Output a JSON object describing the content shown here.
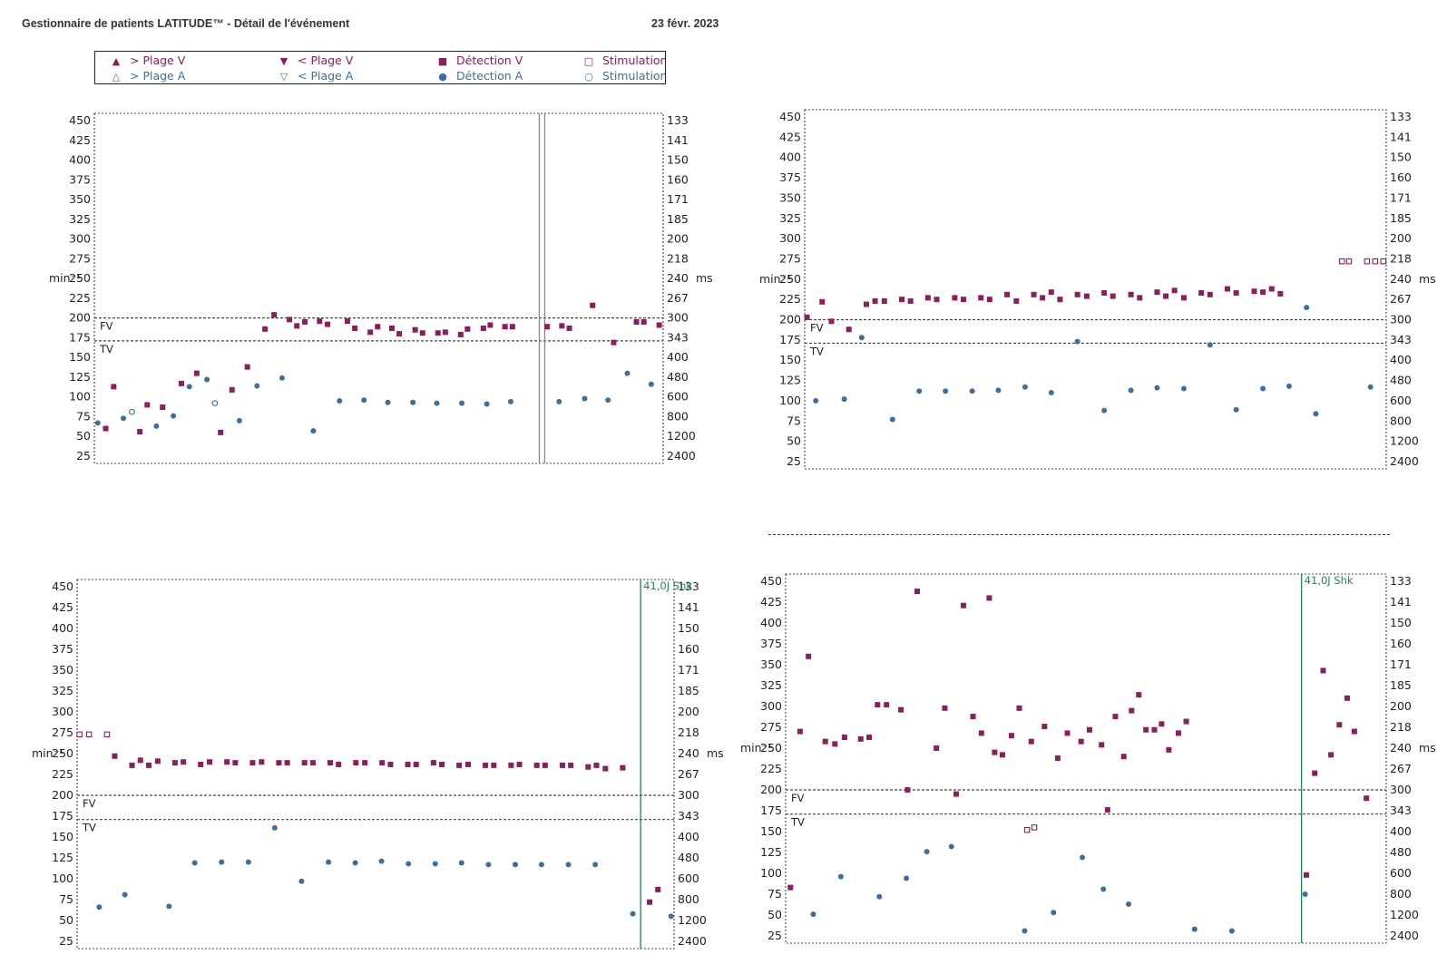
{
  "header": {
    "title": "Gestionnaire de patients LATITUDE™ - Détail de l'événement",
    "date": "23 févr. 2023"
  },
  "colors": {
    "v": "#8b1f5c",
    "a": "#3a6ea5",
    "shock": "#1e8a4a",
    "grid": "#444444"
  },
  "legend": {
    "items": [
      {
        "label": "> Plage V",
        "symbol": "arrow-up-filled-icon",
        "color": "#8b1f5c"
      },
      {
        "label": "< Plage V",
        "symbol": "arrow-down-filled-icon",
        "color": "#8b1f5c"
      },
      {
        "label": "Détection V",
        "symbol": "square-filled-icon",
        "color": "#8b1f5c"
      },
      {
        "label": "Stimulation V",
        "symbol": "square-open-icon",
        "color": "#8b1f5c"
      },
      {
        "label": "> Plage A",
        "symbol": "arrow-up-open-icon",
        "color": "#3a6ea5"
      },
      {
        "label": "< Plage A",
        "symbol": "arrow-down-open-icon",
        "color": "#3a6ea5"
      },
      {
        "label": "Détection A",
        "symbol": "dot-filled-icon",
        "color": "#3a6ea5"
      },
      {
        "label": "Stimulation A",
        "symbol": "dot-open-icon",
        "color": "#3a6ea5"
      }
    ]
  },
  "chart_data": [
    {
      "type": "scatter",
      "ylabel_left": "min⁻¹",
      "ylabel_right": "ms",
      "y_ticks": [
        450,
        425,
        400,
        375,
        350,
        325,
        300,
        275,
        250,
        225,
        200,
        175,
        150,
        125,
        100,
        75,
        50,
        25
      ],
      "ms_ticks": [
        "133",
        "141",
        "150",
        "160",
        "171",
        "185",
        "200",
        "218",
        "240",
        "267",
        "300",
        "343",
        "400",
        "480",
        "600",
        "800",
        "1200",
        "2400"
      ],
      "ylim": [
        25,
        450
      ],
      "xlim": [
        0,
        100
      ],
      "zones": [
        {
          "label": "FV",
          "value": 200
        },
        {
          "label": "TV",
          "value": 171
        }
      ],
      "markers": [
        {
          "kind": "double-line",
          "x": 78.7
        }
      ],
      "v_sense": [
        [
          2,
          60
        ],
        [
          3.4,
          113
        ],
        [
          8,
          56
        ],
        [
          9.3,
          90
        ],
        [
          12,
          87
        ],
        [
          15.3,
          117
        ],
        [
          18,
          130
        ],
        [
          22.2,
          55
        ],
        [
          24.2,
          109
        ],
        [
          26.9,
          138
        ],
        [
          30,
          186
        ],
        [
          31.6,
          204
        ],
        [
          34.3,
          198
        ],
        [
          35.6,
          190
        ],
        [
          37,
          195
        ],
        [
          39.6,
          196
        ],
        [
          41,
          192
        ],
        [
          44.5,
          196
        ],
        [
          45.8,
          187
        ],
        [
          48.5,
          182
        ],
        [
          49.8,
          189
        ],
        [
          52.3,
          187
        ],
        [
          53.6,
          180
        ],
        [
          56.4,
          185
        ],
        [
          57.7,
          181
        ],
        [
          60.4,
          181
        ],
        [
          61.7,
          182
        ],
        [
          64.4,
          179
        ],
        [
          65.6,
          186
        ],
        [
          68.4,
          187
        ],
        [
          69.6,
          191
        ],
        [
          72.2,
          189
        ],
        [
          73.5,
          189
        ],
        [
          79.6,
          189
        ],
        [
          82.2,
          190
        ],
        [
          83.5,
          187
        ],
        [
          87.6,
          216
        ],
        [
          91.3,
          169
        ],
        [
          95.3,
          195
        ],
        [
          96.6,
          195
        ],
        [
          99.3,
          191
        ]
      ],
      "a_sense": [
        [
          0.6,
          67
        ],
        [
          5.1,
          73
        ],
        [
          10.9,
          63
        ],
        [
          13.9,
          76
        ],
        [
          16.7,
          113
        ],
        [
          19.8,
          122
        ],
        [
          25.5,
          70
        ],
        [
          28.6,
          114
        ],
        [
          33,
          124
        ],
        [
          38.5,
          57
        ],
        [
          43.1,
          95
        ],
        [
          47.4,
          96
        ],
        [
          51.6,
          93
        ],
        [
          56,
          93
        ],
        [
          60.2,
          92
        ],
        [
          64.6,
          92
        ],
        [
          69,
          91
        ],
        [
          73.2,
          94
        ],
        [
          81.7,
          94
        ],
        [
          86.2,
          98
        ],
        [
          90.3,
          96
        ],
        [
          93.7,
          130
        ],
        [
          97.9,
          116
        ]
      ],
      "v_pace": [],
      "a_pace": [
        [
          6.6,
          81
        ],
        [
          21.2,
          92
        ]
      ]
    },
    {
      "type": "scatter",
      "ylabel_left": "min⁻¹",
      "ylabel_right": "ms",
      "y_ticks": [
        450,
        425,
        400,
        375,
        350,
        325,
        300,
        275,
        250,
        225,
        200,
        175,
        150,
        125,
        100,
        75,
        50,
        25
      ],
      "ms_ticks": [
        "133",
        "141",
        "150",
        "160",
        "171",
        "185",
        "200",
        "218",
        "240",
        "267",
        "300",
        "343",
        "400",
        "480",
        "600",
        "800",
        "1200",
        "2400"
      ],
      "ylim": [
        25,
        450
      ],
      "xlim": [
        0,
        100
      ],
      "zones": [
        {
          "label": "FV",
          "value": 200
        },
        {
          "label": "TV",
          "value": 171
        }
      ],
      "markers": [],
      "v_sense": [
        [
          0.4,
          203
        ],
        [
          3,
          222
        ],
        [
          4.6,
          198
        ],
        [
          7.6,
          188
        ],
        [
          10.6,
          219
        ],
        [
          12.1,
          223
        ],
        [
          13.7,
          223
        ],
        [
          16.7,
          225
        ],
        [
          18.2,
          223
        ],
        [
          21.2,
          227
        ],
        [
          22.7,
          225
        ],
        [
          25.8,
          227
        ],
        [
          27.3,
          225
        ],
        [
          30.3,
          227
        ],
        [
          31.8,
          225
        ],
        [
          34.8,
          231
        ],
        [
          36.4,
          223
        ],
        [
          39.4,
          231
        ],
        [
          40.9,
          227
        ],
        [
          42.4,
          234
        ],
        [
          43.9,
          225
        ],
        [
          46.9,
          231
        ],
        [
          48.5,
          229
        ],
        [
          51.5,
          233
        ],
        [
          53,
          229
        ],
        [
          56.1,
          231
        ],
        [
          57.6,
          227
        ],
        [
          60.6,
          234
        ],
        [
          62.1,
          229
        ],
        [
          63.6,
          236
        ],
        [
          65.2,
          227
        ],
        [
          68.2,
          233
        ],
        [
          69.7,
          231
        ],
        [
          72.7,
          238
        ],
        [
          74.2,
          233
        ],
        [
          77.3,
          235
        ],
        [
          78.8,
          234
        ],
        [
          80.3,
          238
        ],
        [
          81.8,
          232
        ]
      ],
      "a_sense": [
        [
          1.9,
          100
        ],
        [
          6.8,
          102
        ],
        [
          9.8,
          178
        ],
        [
          15.1,
          77
        ],
        [
          19.7,
          112
        ],
        [
          24.2,
          112
        ],
        [
          28.8,
          112
        ],
        [
          33.3,
          113
        ],
        [
          37.9,
          117
        ],
        [
          42.4,
          110
        ],
        [
          46.9,
          173
        ],
        [
          51.5,
          88
        ],
        [
          56.1,
          113
        ],
        [
          60.6,
          116
        ],
        [
          65.2,
          115
        ],
        [
          69.7,
          169
        ],
        [
          74.2,
          89
        ],
        [
          78.8,
          115
        ],
        [
          83.3,
          118
        ],
        [
          86.3,
          215
        ],
        [
          87.9,
          84
        ],
        [
          97.3,
          117
        ]
      ],
      "v_pace": [
        [
          92.4,
          272
        ],
        [
          93.6,
          272
        ],
        [
          96.7,
          272
        ],
        [
          98.1,
          272
        ],
        [
          99.5,
          272
        ]
      ],
      "a_pace": []
    },
    {
      "type": "scatter",
      "ylabel_left": "min⁻¹",
      "ylabel_right": "ms",
      "y_ticks": [
        450,
        425,
        400,
        375,
        350,
        325,
        300,
        275,
        250,
        225,
        200,
        175,
        150,
        125,
        100,
        75,
        50,
        25
      ],
      "ms_ticks": [
        "133",
        "141",
        "150",
        "160",
        "171",
        "185",
        "200",
        "218",
        "240",
        "267",
        "300",
        "343",
        "400",
        "480",
        "600",
        "800",
        "1200",
        "2400"
      ],
      "ylim": [
        25,
        450
      ],
      "xlim": [
        0,
        100
      ],
      "zones": [
        {
          "label": "FV",
          "value": 200
        },
        {
          "label": "TV",
          "value": 171
        }
      ],
      "markers": [
        {
          "kind": "shock",
          "x": 94.4,
          "label": "41,0J Shk"
        }
      ],
      "v_sense": [
        [
          6.3,
          247
        ],
        [
          9.2,
          236
        ],
        [
          10.6,
          242
        ],
        [
          12,
          236
        ],
        [
          13.5,
          241
        ],
        [
          16.4,
          239
        ],
        [
          17.8,
          240
        ],
        [
          20.7,
          237
        ],
        [
          22.2,
          240
        ],
        [
          25.1,
          240
        ],
        [
          26.5,
          239
        ],
        [
          29.4,
          239
        ],
        [
          30.9,
          240
        ],
        [
          33.8,
          239
        ],
        [
          35.2,
          239
        ],
        [
          38.1,
          239
        ],
        [
          39.5,
          239
        ],
        [
          42.4,
          239
        ],
        [
          43.8,
          237
        ],
        [
          46.7,
          239
        ],
        [
          48.2,
          239
        ],
        [
          51.1,
          239
        ],
        [
          52.5,
          237
        ],
        [
          55.4,
          237
        ],
        [
          56.8,
          237
        ],
        [
          59.7,
          239
        ],
        [
          61.1,
          237
        ],
        [
          64,
          236
        ],
        [
          65.5,
          237
        ],
        [
          68.4,
          236
        ],
        [
          69.8,
          236
        ],
        [
          72.7,
          236
        ],
        [
          74.1,
          237
        ],
        [
          77,
          236
        ],
        [
          78.4,
          236
        ],
        [
          81.3,
          236
        ],
        [
          82.7,
          236
        ],
        [
          85.6,
          234
        ],
        [
          87,
          236
        ],
        [
          88.5,
          232
        ],
        [
          91.4,
          233
        ],
        [
          95.9,
          72
        ],
        [
          97.3,
          87
        ]
      ],
      "a_sense": [
        [
          3.7,
          66
        ],
        [
          8,
          81
        ],
        [
          15.4,
          67
        ],
        [
          19.7,
          119
        ],
        [
          24.2,
          120
        ],
        [
          28.7,
          120
        ],
        [
          33.1,
          161
        ],
        [
          37.6,
          97
        ],
        [
          42.1,
          120
        ],
        [
          46.6,
          119
        ],
        [
          51,
          121
        ],
        [
          55.5,
          118
        ],
        [
          60,
          118
        ],
        [
          64.4,
          119
        ],
        [
          68.9,
          117
        ],
        [
          73.4,
          117
        ],
        [
          77.8,
          117
        ],
        [
          82.3,
          117
        ],
        [
          86.8,
          117
        ],
        [
          93.1,
          58
        ],
        [
          99.5,
          55
        ]
      ],
      "v_pace": [
        [
          0.4,
          273
        ],
        [
          2,
          273
        ],
        [
          5,
          273
        ]
      ],
      "a_pace": []
    },
    {
      "type": "scatter",
      "ylabel_left": "min⁻¹",
      "ylabel_right": "ms",
      "y_ticks": [
        450,
        425,
        400,
        375,
        350,
        325,
        300,
        275,
        250,
        225,
        200,
        175,
        150,
        125,
        100,
        75,
        50,
        25
      ],
      "ms_ticks": [
        "133",
        "141",
        "150",
        "160",
        "171",
        "185",
        "200",
        "218",
        "240",
        "267",
        "300",
        "343",
        "400",
        "480",
        "600",
        "800",
        "1200",
        "2400"
      ],
      "ylim": [
        25,
        450
      ],
      "xlim": [
        0,
        100
      ],
      "zones": [
        {
          "label": "FV",
          "value": 200
        },
        {
          "label": "TV",
          "value": 171
        }
      ],
      "markers": [
        {
          "kind": "shock",
          "x": 85.9,
          "label": "41,0J Shk"
        }
      ],
      "v_sense": [
        [
          0.8,
          83
        ],
        [
          2.4,
          270
        ],
        [
          3.8,
          360
        ],
        [
          6.6,
          258
        ],
        [
          8.2,
          255
        ],
        [
          9.8,
          263
        ],
        [
          12.5,
          261
        ],
        [
          13.9,
          263
        ],
        [
          15.3,
          302
        ],
        [
          16.8,
          302
        ],
        [
          19.2,
          296
        ],
        [
          20.3,
          200
        ],
        [
          21.9,
          438
        ],
        [
          25.1,
          250
        ],
        [
          26.5,
          298
        ],
        [
          28.4,
          195
        ],
        [
          29.6,
          421
        ],
        [
          31.2,
          288
        ],
        [
          32.6,
          268
        ],
        [
          33.9,
          430
        ],
        [
          34.8,
          245
        ],
        [
          36.1,
          242
        ],
        [
          37.6,
          265
        ],
        [
          38.9,
          298
        ],
        [
          40.9,
          258
        ],
        [
          43.1,
          276
        ],
        [
          45.3,
          238
        ],
        [
          46.9,
          268
        ],
        [
          49.2,
          258
        ],
        [
          50.6,
          272
        ],
        [
          52.6,
          254
        ],
        [
          53.6,
          176
        ],
        [
          54.9,
          288
        ],
        [
          56.3,
          240
        ],
        [
          57.6,
          295
        ],
        [
          58.8,
          314
        ],
        [
          60,
          272
        ],
        [
          61.4,
          272
        ],
        [
          62.6,
          279
        ],
        [
          63.8,
          248
        ],
        [
          65.4,
          268
        ],
        [
          66.7,
          282
        ],
        [
          86.7,
          98
        ],
        [
          88.1,
          220
        ],
        [
          89.5,
          343
        ],
        [
          90.8,
          242
        ],
        [
          92.2,
          278
        ],
        [
          93.5,
          310
        ],
        [
          94.7,
          270
        ],
        [
          96.7,
          190
        ]
      ],
      "a_sense": [
        [
          4.6,
          51
        ],
        [
          9.2,
          96
        ],
        [
          15.6,
          72
        ],
        [
          20.1,
          94
        ],
        [
          23.5,
          126
        ],
        [
          27.6,
          132
        ],
        [
          39.8,
          31
        ],
        [
          44.6,
          53
        ],
        [
          49.4,
          119
        ],
        [
          52.9,
          81
        ],
        [
          57.1,
          63
        ],
        [
          68.1,
          33
        ],
        [
          74.3,
          31
        ],
        [
          86.5,
          75
        ]
      ],
      "v_pace": [
        [
          40.2,
          152
        ],
        [
          41.4,
          155
        ]
      ],
      "a_pace": []
    }
  ]
}
